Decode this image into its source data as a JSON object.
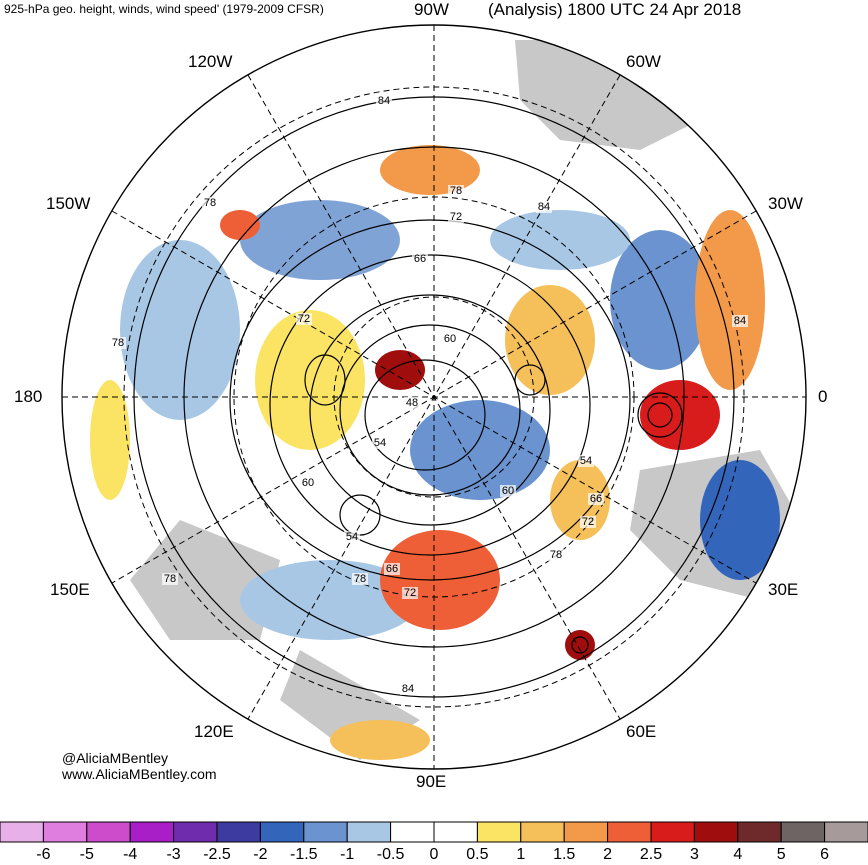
{
  "header": {
    "title_left": "925-hPa geo. height, winds, wind speed' (1979-2009 CFSR)",
    "title_right": "(Analysis) 1800 UTC 24 Apr 2018"
  },
  "longitude_labels": {
    "lon_90w": "90W",
    "lon_60w": "60W",
    "lon_120w": "120W",
    "lon_150w": "150W",
    "lon_30w": "30W",
    "lon_180": "180",
    "lon_0": "0",
    "lon_150e": "150E",
    "lon_30e": "30E",
    "lon_120e": "120E",
    "lon_60e": "60E",
    "lon_90e": "90E"
  },
  "contour_labels": [
    "84",
    "78",
    "72",
    "66",
    "60",
    "54",
    "48",
    "78",
    "72",
    "60",
    "54",
    "66",
    "72",
    "78",
    "84",
    "78",
    "84",
    "78",
    "60",
    "54",
    "66",
    "72",
    "78",
    "84"
  ],
  "credits": {
    "handle": "@AliciaMBentley",
    "website": "www.AliciaMBentley.com"
  },
  "colorbar": {
    "labels": [
      "-6",
      "-5",
      "-4",
      "-3",
      "-2.5",
      "-2",
      "-1.5",
      "-1",
      "-0.5",
      "0",
      "0.5",
      "1",
      "1.5",
      "2",
      "2.5",
      "3",
      "4",
      "5",
      "6"
    ],
    "colors": [
      "#e8b0e8",
      "#e07ee0",
      "#cc4ccc",
      "#a81fc8",
      "#6f2cad",
      "#3d3ba0",
      "#3366bb",
      "#6a93cf",
      "#a7c7e5",
      "#ffffff",
      "#ffffff",
      "#fbe464",
      "#f5c05a",
      "#f2994a",
      "#ee5f38",
      "#d81b1b",
      "#a00d0d",
      "#6e2a2a",
      "#6e6464",
      "#a79a9a"
    ]
  },
  "colors": {
    "land": "#c8c8c8",
    "positive": "#f5c05a",
    "negative": "#6a93cf"
  }
}
